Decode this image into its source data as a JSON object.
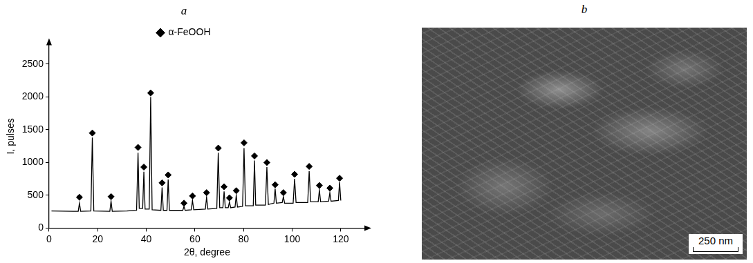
{
  "chart_data": {
    "type": "line",
    "title": "a",
    "x_label": "2θ, degree",
    "y_label": "I, pulses",
    "x": [
      1,
      10,
      12,
      12.5,
      13,
      17.2,
      17.8,
      18.4,
      25,
      25.5,
      26,
      32,
      36,
      36.6,
      37.1,
      38.5,
      39,
      39.5,
      41.2,
      41.8,
      42.4,
      46,
      46.5,
      47,
      48.5,
      49,
      49.5,
      55,
      55.5,
      56,
      58.5,
      59,
      59.5,
      64.3,
      64.8,
      65.3,
      69,
      69.6,
      70.2,
      71.5,
      72,
      72.5,
      73.7,
      74.2,
      74.7,
      76.5,
      77,
      77.5,
      79.6,
      80.2,
      80.8,
      84,
      84.5,
      85,
      89,
      89.6,
      90.2,
      92.5,
      93,
      93.5,
      95.9,
      96.4,
      96.9,
      100.4,
      101,
      101.6,
      106.4,
      107,
      107.6,
      110.7,
      111.2,
      111.7,
      115,
      115.5,
      116,
      119,
      119.5,
      120
    ],
    "values": [
      260,
      255,
      255,
      380,
      255,
      260,
      1380,
      260,
      255,
      410,
      255,
      260,
      270,
      1150,
      300,
      300,
      860,
      290,
      290,
      2000,
      280,
      270,
      620,
      270,
      270,
      740,
      270,
      270,
      330,
      270,
      280,
      420,
      280,
      290,
      470,
      290,
      300,
      1150,
      310,
      310,
      560,
      310,
      310,
      400,
      310,
      320,
      500,
      320,
      330,
      1220,
      340,
      340,
      1030,
      350,
      350,
      930,
      360,
      380,
      600,
      380,
      390,
      480,
      380,
      380,
      750,
      390,
      390,
      870,
      400,
      400,
      580,
      400,
      410,
      540,
      410,
      420,
      700,
      420
    ],
    "color": "#000000",
    "series": [
      {
        "name": "α-FeOOH",
        "type": "scatter",
        "marker": "diamond",
        "color": "#000000",
        "x": [
          12.5,
          17.8,
          25.5,
          36.6,
          39,
          41.8,
          46.5,
          49,
          55.5,
          59,
          64.8,
          69.6,
          72,
          74.2,
          77,
          80.2,
          84.5,
          89.6,
          93,
          96.4,
          101,
          107,
          111.2,
          115.5,
          119.5
        ],
        "values": [
          470,
          1450,
          480,
          1230,
          930,
          2060,
          690,
          810,
          380,
          490,
          540,
          1220,
          630,
          460,
          570,
          1300,
          1100,
          1000,
          660,
          540,
          820,
          940,
          650,
          610,
          760
        ]
      }
    ],
    "xlim": [
      0,
      130
    ],
    "xticks": [
      0,
      20,
      40,
      60,
      80,
      100,
      120
    ],
    "ylim": [
      0,
      2800
    ],
    "yticks": [
      0,
      500,
      1000,
      1500,
      2000,
      2500
    ],
    "grid": false,
    "legend": "top"
  },
  "image_panel": {
    "title": "b",
    "scale_bar": "250 nm"
  }
}
